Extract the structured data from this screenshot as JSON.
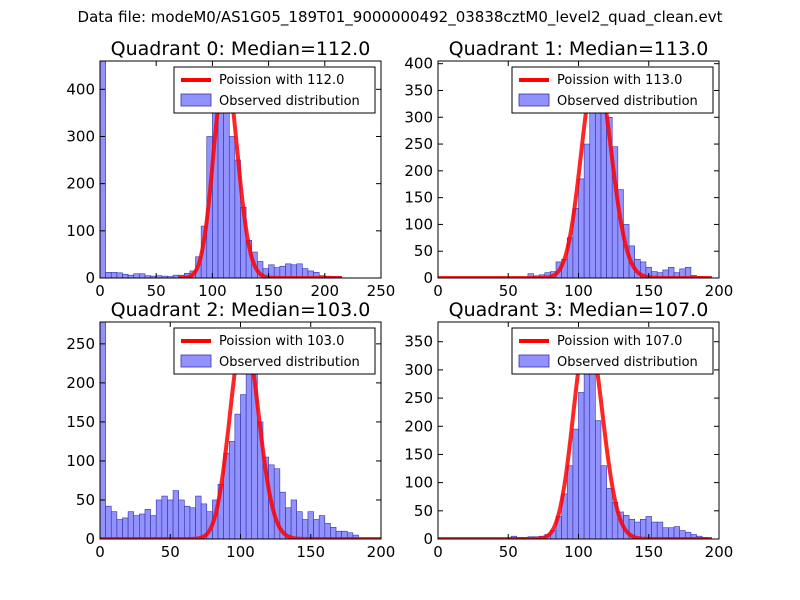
{
  "suptitle": "Data file: modeM0/AS1G05_189T01_9000000492_03838cztM0_level2_quad_clean.evt",
  "colors": {
    "poisson": "#ff0000",
    "hist_fill": "#7f7fff",
    "hist_edge": "#3333aa"
  },
  "chart_data": [
    {
      "type": "bar",
      "title": "Quadrant 0: Median=112.0",
      "xlim": [
        0,
        250
      ],
      "ylim": [
        0,
        460
      ],
      "xticks": [
        0,
        50,
        100,
        150,
        200,
        250
      ],
      "yticks": [
        0,
        100,
        200,
        300,
        400
      ],
      "legend": [
        "Poission with 112.0",
        "Observed distribution"
      ],
      "legend_position": "top-right",
      "poisson_mean": 112,
      "poisson_peak": 440,
      "poisson_range": [
        70,
        215
      ],
      "hist_bin_width": 5,
      "hist_values": [
        [
          0,
          460
        ],
        [
          5,
          12
        ],
        [
          10,
          12
        ],
        [
          15,
          11
        ],
        [
          20,
          8
        ],
        [
          25,
          6
        ],
        [
          30,
          9
        ],
        [
          35,
          9
        ],
        [
          40,
          5
        ],
        [
          45,
          4
        ],
        [
          50,
          5
        ],
        [
          55,
          4
        ],
        [
          60,
          3
        ],
        [
          65,
          6
        ],
        [
          70,
          6
        ],
        [
          75,
          10
        ],
        [
          80,
          15
        ],
        [
          85,
          45
        ],
        [
          90,
          110
        ],
        [
          95,
          300
        ],
        [
          100,
          350
        ],
        [
          105,
          390
        ],
        [
          110,
          420
        ],
        [
          115,
          300
        ],
        [
          120,
          250
        ],
        [
          125,
          150
        ],
        [
          130,
          80
        ],
        [
          135,
          55
        ],
        [
          140,
          35
        ],
        [
          145,
          20
        ],
        [
          150,
          28
        ],
        [
          155,
          22
        ],
        [
          160,
          25
        ],
        [
          165,
          30
        ],
        [
          170,
          28
        ],
        [
          175,
          30
        ],
        [
          180,
          20
        ],
        [
          185,
          15
        ],
        [
          190,
          12
        ],
        [
          195,
          5
        ],
        [
          200,
          4
        ],
        [
          205,
          3
        ],
        [
          210,
          3
        ]
      ]
    },
    {
      "type": "bar",
      "title": "Quadrant 1: Median=113.0",
      "xlim": [
        0,
        200
      ],
      "ylim": [
        0,
        405
      ],
      "xticks": [
        0,
        50,
        100,
        150,
        200
      ],
      "yticks": [
        0,
        50,
        100,
        150,
        200,
        250,
        300,
        350,
        400
      ],
      "legend": [
        "Poission with 113.0",
        "Observed distribution"
      ],
      "legend_position": "top-right",
      "poisson_mean": 113,
      "poisson_peak": 390,
      "poisson_range": [
        0,
        195
      ],
      "hist_bin_width": 4,
      "hist_values": [
        [
          64,
          8
        ],
        [
          68,
          4
        ],
        [
          72,
          6
        ],
        [
          76,
          10
        ],
        [
          80,
          12
        ],
        [
          84,
          30
        ],
        [
          88,
          35
        ],
        [
          92,
          75
        ],
        [
          96,
          130
        ],
        [
          100,
          185
        ],
        [
          104,
          250
        ],
        [
          108,
          315
        ],
        [
          112,
          370
        ],
        [
          116,
          340
        ],
        [
          120,
          300
        ],
        [
          124,
          245
        ],
        [
          128,
          165
        ],
        [
          132,
          100
        ],
        [
          136,
          60
        ],
        [
          140,
          35
        ],
        [
          144,
          30
        ],
        [
          148,
          20
        ],
        [
          152,
          12
        ],
        [
          156,
          10
        ],
        [
          160,
          15
        ],
        [
          164,
          20
        ],
        [
          168,
          10
        ],
        [
          172,
          17
        ],
        [
          176,
          20
        ],
        [
          180,
          5
        ],
        [
          184,
          3
        ],
        [
          188,
          2
        ]
      ]
    },
    {
      "type": "bar",
      "title": "Quadrant 2: Median=103.0",
      "xlim": [
        0,
        200
      ],
      "ylim": [
        0,
        278
      ],
      "xticks": [
        0,
        50,
        100,
        150,
        200
      ],
      "yticks": [
        0,
        50,
        100,
        150,
        200,
        250
      ],
      "legend": [
        "Poission with 103.0",
        "Observed distribution"
      ],
      "legend_position": "top-right",
      "poisson_mean": 103,
      "poisson_peak": 265,
      "poisson_range": [
        0,
        200
      ],
      "hist_bin_width": 4,
      "hist_values": [
        [
          0,
          278
        ],
        [
          4,
          42
        ],
        [
          8,
          35
        ],
        [
          12,
          25
        ],
        [
          16,
          27
        ],
        [
          20,
          35
        ],
        [
          24,
          30
        ],
        [
          28,
          32
        ],
        [
          32,
          38
        ],
        [
          36,
          30
        ],
        [
          40,
          50
        ],
        [
          44,
          55
        ],
        [
          48,
          50
        ],
        [
          52,
          62
        ],
        [
          56,
          50
        ],
        [
          60,
          42
        ],
        [
          64,
          40
        ],
        [
          68,
          55
        ],
        [
          72,
          45
        ],
        [
          76,
          35
        ],
        [
          80,
          50
        ],
        [
          84,
          70
        ],
        [
          88,
          110
        ],
        [
          92,
          125
        ],
        [
          96,
          160
        ],
        [
          100,
          185
        ],
        [
          104,
          240
        ],
        [
          108,
          250
        ],
        [
          112,
          150
        ],
        [
          116,
          105
        ],
        [
          120,
          95
        ],
        [
          124,
          90
        ],
        [
          128,
          60
        ],
        [
          132,
          40
        ],
        [
          136,
          50
        ],
        [
          140,
          35
        ],
        [
          144,
          25
        ],
        [
          148,
          35
        ],
        [
          152,
          25
        ],
        [
          156,
          30
        ],
        [
          160,
          20
        ],
        [
          164,
          15
        ],
        [
          168,
          10
        ],
        [
          172,
          10
        ],
        [
          176,
          8
        ],
        [
          180,
          5
        ]
      ]
    },
    {
      "type": "bar",
      "title": "Quadrant 3: Median=107.0",
      "xlim": [
        0,
        200
      ],
      "ylim": [
        0,
        385
      ],
      "xticks": [
        0,
        50,
        100,
        150,
        200
      ],
      "yticks": [
        0,
        50,
        100,
        150,
        200,
        250,
        300,
        350
      ],
      "legend": [
        "Poission with 107.0",
        "Observed distribution"
      ],
      "legend_position": "top-right",
      "poisson_mean": 107,
      "poisson_peak": 368,
      "poisson_range": [
        0,
        195
      ],
      "hist_bin_width": 4,
      "hist_values": [
        [
          52,
          5
        ],
        [
          56,
          3
        ],
        [
          60,
          3
        ],
        [
          64,
          4
        ],
        [
          68,
          4
        ],
        [
          72,
          5
        ],
        [
          76,
          8
        ],
        [
          80,
          15
        ],
        [
          84,
          40
        ],
        [
          88,
          80
        ],
        [
          92,
          130
        ],
        [
          96,
          195
        ],
        [
          100,
          260
        ],
        [
          104,
          330
        ],
        [
          108,
          300
        ],
        [
          112,
          210
        ],
        [
          116,
          130
        ],
        [
          120,
          90
        ],
        [
          124,
          65
        ],
        [
          128,
          48
        ],
        [
          132,
          42
        ],
        [
          136,
          35
        ],
        [
          140,
          30
        ],
        [
          144,
          35
        ],
        [
          148,
          40
        ],
        [
          152,
          30
        ],
        [
          156,
          30
        ],
        [
          160,
          20
        ],
        [
          164,
          20
        ],
        [
          168,
          22
        ],
        [
          172,
          15
        ],
        [
          176,
          12
        ],
        [
          180,
          8
        ],
        [
          184,
          5
        ],
        [
          188,
          3
        ]
      ]
    }
  ]
}
